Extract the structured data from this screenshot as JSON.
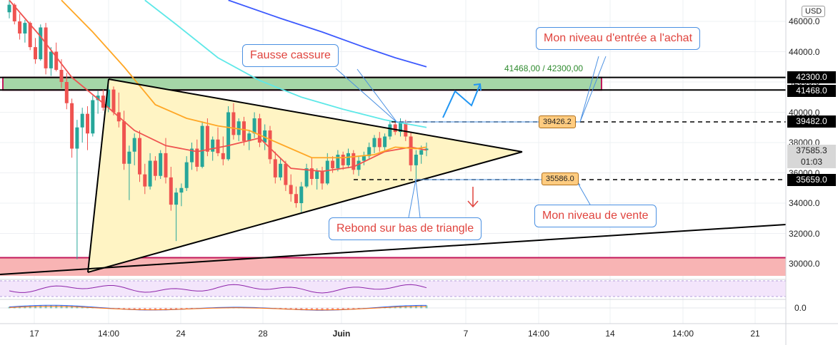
{
  "chart_data": {
    "type": "candlestick",
    "currency": "USD",
    "y_ticks": [
      46000.0,
      44000.0,
      42000.0,
      40000.0,
      38000.0,
      36000.0,
      34000.0,
      32000.0,
      30000.0
    ],
    "x_ticks": [
      "17",
      "14:00",
      "24",
      "28",
      "Juin",
      "7",
      "14:00",
      "14",
      "14:00",
      "21"
    ],
    "price_labels": [
      {
        "value": "42300.0",
        "style": "black"
      },
      {
        "value": "41468.0",
        "style": "black"
      },
      {
        "value": "39482.0",
        "style": "black"
      },
      {
        "value": "37585.3",
        "style": "gray"
      },
      {
        "value": "01:03",
        "style": "gray"
      },
      {
        "value": "35659.0",
        "style": "black"
      }
    ],
    "oscillator_ticks": [
      "0.0"
    ],
    "zones": [
      {
        "name": "resistance-zone",
        "from": 41468,
        "to": 42300,
        "color": "#a5d6a7"
      },
      {
        "name": "support-zone",
        "from": 29200,
        "to": 30400,
        "color": "#f8b4b4"
      }
    ],
    "range_label": "41468,00 / 42300,00",
    "levels": [
      {
        "name": "entry",
        "value": 39482,
        "tag": "39426.2"
      },
      {
        "name": "sell",
        "value": 35659,
        "tag": "35586.0"
      }
    ],
    "annotations": [
      {
        "name": "fake-breakout",
        "text": "Fausse cassure"
      },
      {
        "name": "entry-level",
        "text": "Mon niveau d'entrée a l'achat"
      },
      {
        "name": "sell-level",
        "text": "Mon niveau de vente"
      },
      {
        "name": "rebound",
        "text": "Rebond sur bas de triangle"
      }
    ],
    "candles": [
      [
        0,
        46600,
        47400,
        46200,
        47100
      ],
      [
        1,
        47100,
        47200,
        45800,
        46000
      ],
      [
        2,
        46000,
        46500,
        44800,
        45200
      ],
      [
        3,
        45200,
        46100,
        44600,
        45900
      ],
      [
        4,
        45900,
        46000,
        44100,
        44300
      ],
      [
        5,
        44300,
        44900,
        43200,
        43500
      ],
      [
        6,
        43500,
        45800,
        43400,
        45600
      ],
      [
        7,
        45600,
        45900,
        42500,
        42900
      ],
      [
        8,
        42900,
        44300,
        42400,
        44000
      ],
      [
        9,
        44000,
        44600,
        42700,
        42800
      ],
      [
        10,
        42800,
        43500,
        41600,
        42000
      ],
      [
        11,
        42000,
        42600,
        40200,
        40600
      ],
      [
        12,
        40600,
        40900,
        37000,
        37600
      ],
      [
        13,
        37600,
        39500,
        30300,
        39000
      ],
      [
        14,
        39000,
        40300,
        38000,
        39900
      ],
      [
        15,
        39900,
        40400,
        37500,
        38600
      ],
      [
        16,
        38600,
        41100,
        38400,
        40800
      ],
      [
        17,
        40800,
        41400,
        39900,
        41100
      ],
      [
        18,
        41100,
        41500,
        40100,
        40300
      ],
      [
        19,
        40300,
        41800,
        40000,
        41500
      ],
      [
        20,
        41500,
        41700,
        39800,
        40000
      ],
      [
        21,
        40000,
        41300,
        39000,
        39400
      ],
      [
        22,
        39400,
        40100,
        36200,
        36600
      ],
      [
        23,
        36600,
        37800,
        34200,
        37400
      ],
      [
        24,
        37400,
        38600,
        36500,
        38300
      ],
      [
        25,
        38300,
        38800,
        35400,
        35900
      ],
      [
        26,
        35900,
        36600,
        34600,
        35100
      ],
      [
        27,
        35100,
        37300,
        34900,
        36800
      ],
      [
        28,
        36800,
        37100,
        35500,
        35800
      ],
      [
        29,
        35800,
        37500,
        35600,
        37300
      ],
      [
        30,
        37300,
        38300,
        35300,
        35700
      ],
      [
        31,
        35700,
        36400,
        33500,
        33900
      ],
      [
        32,
        33900,
        35000,
        31500,
        34700
      ],
      [
        33,
        34700,
        35300,
        33800,
        35000
      ],
      [
        34,
        35000,
        37100,
        34800,
        36700
      ],
      [
        35,
        36700,
        38000,
        36200,
        37600
      ],
      [
        36,
        37600,
        38200,
        36100,
        36400
      ],
      [
        37,
        36400,
        39400,
        36300,
        39100
      ],
      [
        38,
        39100,
        39600,
        37100,
        37400
      ],
      [
        39,
        37400,
        38400,
        36800,
        38200
      ],
      [
        40,
        38200,
        39000,
        37100,
        37300
      ],
      [
        41,
        37300,
        38400,
        36500,
        36900
      ],
      [
        42,
        36900,
        40400,
        36800,
        40000
      ],
      [
        43,
        40000,
        40600,
        38200,
        38500
      ],
      [
        44,
        38500,
        39600,
        38100,
        39400
      ],
      [
        45,
        39400,
        39700,
        37800,
        38100
      ],
      [
        46,
        38100,
        38800,
        37500,
        38600
      ],
      [
        47,
        38600,
        40000,
        38300,
        39600
      ],
      [
        48,
        39600,
        39900,
        37700,
        38000
      ],
      [
        49,
        38000,
        39200,
        37500,
        38800
      ],
      [
        50,
        38800,
        39100,
        36600,
        36900
      ],
      [
        51,
        36900,
        37400,
        35300,
        35700
      ],
      [
        52,
        35700,
        37000,
        35500,
        36600
      ],
      [
        53,
        36600,
        36800,
        34800,
        35200
      ],
      [
        54,
        35200,
        35900,
        34100,
        34600
      ],
      [
        55,
        34600,
        35100,
        33700,
        34000
      ],
      [
        56,
        34000,
        35400,
        33400,
        35100
      ],
      [
        57,
        35100,
        36600,
        35000,
        36300
      ],
      [
        58,
        36300,
        37000,
        35200,
        35600
      ],
      [
        59,
        35600,
        36300,
        34900,
        36100
      ],
      [
        60,
        36100,
        36400,
        34900,
        35300
      ],
      [
        61,
        35300,
        37300,
        35200,
        36800
      ],
      [
        62,
        36800,
        37100,
        36000,
        36300
      ],
      [
        63,
        36300,
        37500,
        36100,
        37200
      ],
      [
        64,
        37200,
        37400,
        36200,
        36500
      ],
      [
        65,
        36500,
        37600,
        36300,
        37300
      ],
      [
        66,
        37300,
        37500,
        35900,
        36200
      ],
      [
        67,
        36200,
        37100,
        35800,
        36800
      ],
      [
        68,
        36800,
        37400,
        36500,
        37100
      ],
      [
        69,
        37100,
        38000,
        36900,
        37700
      ],
      [
        70,
        37700,
        38500,
        37300,
        38300
      ],
      [
        71,
        38300,
        38700,
        37400,
        37700
      ],
      [
        72,
        37700,
        38600,
        37500,
        38400
      ],
      [
        73,
        38400,
        39400,
        38200,
        39200
      ],
      [
        74,
        39200,
        39500,
        38500,
        38700
      ],
      [
        75,
        38700,
        39600,
        38400,
        39300
      ],
      [
        76,
        39300,
        39500,
        38100,
        38400
      ],
      [
        77,
        38400,
        38700,
        36100,
        36500
      ],
      [
        78,
        36500,
        37500,
        35600,
        37200
      ],
      [
        79,
        37200,
        37800,
        36600,
        37500
      ],
      [
        80,
        37500,
        38000,
        37100,
        37600
      ]
    ],
    "moving_averages": [
      {
        "name": "ma-red",
        "color": "#ef5350",
        "points": [
          [
            0,
            47400
          ],
          [
            6,
            45000
          ],
          [
            12,
            42300
          ],
          [
            18,
            40600
          ],
          [
            24,
            38800
          ],
          [
            30,
            37800
          ],
          [
            36,
            37400
          ],
          [
            42,
            37800
          ],
          [
            48,
            38300
          ],
          [
            54,
            36300
          ],
          [
            60,
            36100
          ],
          [
            66,
            36400
          ],
          [
            72,
            37400
          ],
          [
            77,
            37700
          ],
          [
            80,
            37500
          ]
        ]
      },
      {
        "name": "ma-orange",
        "color": "#ffa726",
        "points": [
          [
            10,
            47400
          ],
          [
            16,
            45300
          ],
          [
            22,
            43000
          ],
          [
            28,
            40500
          ],
          [
            34,
            39600
          ],
          [
            40,
            39100
          ],
          [
            46,
            38800
          ],
          [
            52,
            37900
          ],
          [
            58,
            37000
          ],
          [
            64,
            37000
          ],
          [
            70,
            37200
          ],
          [
            74,
            37700
          ],
          [
            78,
            37600
          ],
          [
            80,
            37700
          ]
        ]
      },
      {
        "name": "ma-cyan",
        "color": "#5ee8e8",
        "points": [
          [
            26,
            47400
          ],
          [
            32,
            45800
          ],
          [
            40,
            43600
          ],
          [
            48,
            42100
          ],
          [
            56,
            41000
          ],
          [
            64,
            40200
          ],
          [
            72,
            39500
          ],
          [
            80,
            39000
          ]
        ]
      },
      {
        "name": "ma-blue",
        "color": "#3d5afe",
        "points": [
          [
            42,
            47400
          ],
          [
            52,
            46200
          ],
          [
            60,
            45300
          ],
          [
            68,
            44300
          ],
          [
            74,
            43600
          ],
          [
            80,
            43000
          ]
        ]
      }
    ]
  }
}
